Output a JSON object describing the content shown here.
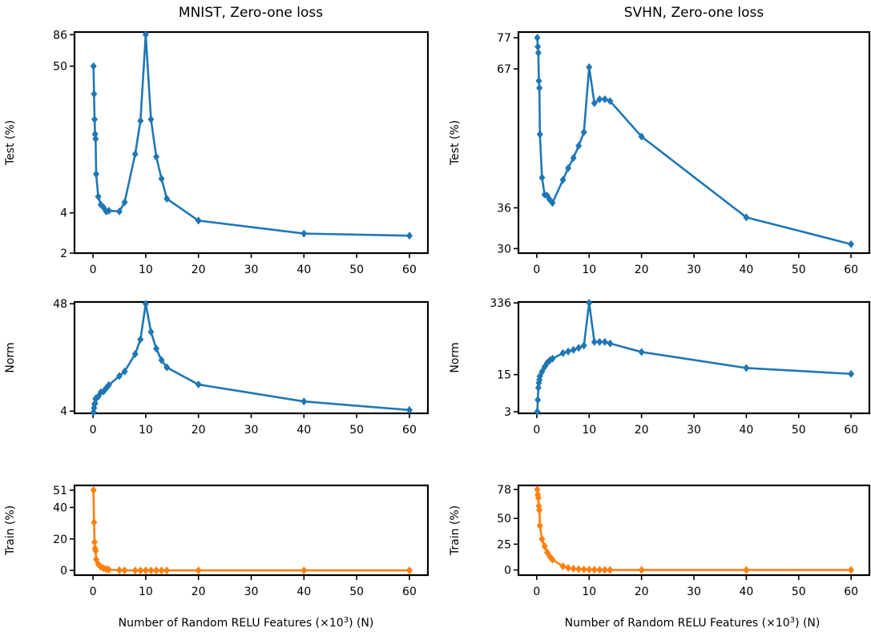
{
  "figure": {
    "xlabel": "Number of Random RELU Features (×10",
    "xlabel_sup": "3",
    "xlabel_tail": ") (N)"
  },
  "chart_data": [
    {
      "type": "line",
      "title": "MNIST, Zero-one loss",
      "ylabel": "Test (%)",
      "xlabel": "",
      "xlim": [
        -3.5,
        63.5
      ],
      "xticks": [
        0,
        10,
        20,
        30,
        40,
        50,
        60
      ],
      "yscale": "log",
      "ylim": [
        2,
        90
      ],
      "yticks": [
        2,
        4,
        50,
        86
      ],
      "color": "#1f77b4",
      "x": [
        0.1,
        0.2,
        0.3,
        0.4,
        0.5,
        0.6,
        1,
        1.5,
        2,
        2.5,
        3,
        5,
        6,
        8,
        9,
        10,
        11,
        12,
        13,
        14,
        20,
        40,
        60
      ],
      "y": [
        50,
        31,
        20,
        15.5,
        14.3,
        7.8,
        5.3,
        4.6,
        4.4,
        4.1,
        4.15,
        4.1,
        4.8,
        11,
        19.5,
        86,
        20,
        10.5,
        7.2,
        5.1,
        3.5,
        2.8,
        2.7
      ]
    },
    {
      "type": "line",
      "title": "SVHN, Zero-one loss",
      "ylabel": "Test (%)",
      "xlabel": "",
      "xlim": [
        -3.5,
        63.5
      ],
      "xticks": [
        0,
        10,
        20,
        30,
        40,
        50,
        60
      ],
      "yscale": "log",
      "ylim": [
        29.4,
        79
      ],
      "yticks": [
        30,
        36,
        67,
        77
      ],
      "color": "#1f77b4",
      "x": [
        0.1,
        0.2,
        0.3,
        0.4,
        0.5,
        0.6,
        1,
        1.5,
        2,
        2.5,
        3,
        5,
        6,
        7,
        8,
        9,
        10,
        11,
        12,
        13,
        14,
        20,
        40,
        60
      ],
      "y": [
        77,
        74,
        72,
        63.5,
        61.5,
        50,
        41.2,
        38.2,
        38,
        37.3,
        36.8,
        40.8,
        43,
        45,
        47.5,
        50.5,
        67.5,
        57.5,
        58.5,
        58.5,
        58,
        49.5,
        34.5,
        30.6
      ]
    },
    {
      "type": "line",
      "title": "",
      "ylabel": "Norm",
      "xlabel": "",
      "xlim": [
        -3.5,
        63.5
      ],
      "xticks": [
        0,
        10,
        20,
        30,
        40,
        50,
        60
      ],
      "yscale": "log",
      "ylim": [
        3.8,
        50
      ],
      "yticks": [
        4,
        48
      ],
      "color": "#1f77b4",
      "x": [
        0.1,
        0.2,
        0.3,
        0.4,
        0.5,
        0.6,
        1,
        1.5,
        2,
        2.5,
        3,
        5,
        6,
        8,
        9,
        10,
        11,
        12,
        13,
        14,
        20,
        40,
        60
      ],
      "y": [
        3.9,
        4.3,
        4.7,
        4.8,
        5.3,
        5.4,
        5.6,
        6.2,
        6.3,
        6.8,
        7.3,
        9,
        10,
        15,
        21,
        48,
        25,
        17,
        13,
        11,
        7.4,
        5,
        4.1
      ]
    },
    {
      "type": "line",
      "title": "",
      "ylabel": "Norm",
      "xlabel": "",
      "xlim": [
        -3.5,
        63.5
      ],
      "xticks": [
        0,
        10,
        20,
        30,
        40,
        50,
        60
      ],
      "yscale": "log",
      "ylim": [
        2.8,
        350
      ],
      "yticks": [
        3,
        15,
        336
      ],
      "color": "#1f77b4",
      "x": [
        0.1,
        0.2,
        0.3,
        0.4,
        0.5,
        0.6,
        1,
        1.5,
        2,
        2.5,
        3,
        5,
        6,
        7,
        8,
        9,
        10,
        11,
        12,
        13,
        14,
        20,
        40,
        60
      ],
      "y": [
        3,
        5,
        8.5,
        10.5,
        12,
        14,
        17,
        21,
        25,
        28,
        30,
        38,
        41,
        44,
        48,
        53,
        336,
        62,
        62,
        62,
        58,
        40,
        20,
        15.5
      ]
    },
    {
      "type": "line",
      "title": "",
      "ylabel": "Train (%)",
      "xlabel": "",
      "xlim": [
        -3.5,
        63.5
      ],
      "xticks": [
        0,
        10,
        20,
        30,
        40,
        50,
        60
      ],
      "ylim": [
        -3,
        54
      ],
      "yticks": [
        0,
        20,
        40,
        51
      ],
      "color": "#ff7f0e",
      "x": [
        0.1,
        0.2,
        0.3,
        0.4,
        0.5,
        0.6,
        1,
        1.5,
        2,
        2.5,
        3,
        5,
        6,
        8,
        9,
        10,
        11,
        12,
        13,
        14,
        20,
        40,
        60
      ],
      "y": [
        51,
        30.5,
        18,
        14,
        12.5,
        7,
        4,
        2.2,
        1.4,
        0.8,
        0.5,
        0.1,
        0.05,
        0,
        0,
        0,
        0,
        0,
        0,
        0,
        0,
        0,
        0
      ]
    },
    {
      "type": "line",
      "title": "",
      "ylabel": "Train (%)",
      "xlabel": "",
      "xlim": [
        -3.5,
        63.5
      ],
      "xticks": [
        0,
        10,
        20,
        30,
        40,
        50,
        60
      ],
      "ylim": [
        -5,
        82
      ],
      "yticks": [
        0,
        25,
        50,
        78
      ],
      "color": "#ff7f0e",
      "x": [
        0.1,
        0.2,
        0.3,
        0.4,
        0.5,
        0.6,
        1,
        1.5,
        2,
        2.5,
        3,
        5,
        6,
        7,
        8,
        9,
        10,
        11,
        12,
        13,
        14,
        20,
        40,
        60
      ],
      "y": [
        78,
        73,
        70,
        62,
        58,
        43,
        30,
        23,
        17,
        13,
        10,
        3.5,
        2,
        1.2,
        0.8,
        0.5,
        0.3,
        0.2,
        0.1,
        0.05,
        0.03,
        0,
        0,
        0
      ]
    }
  ]
}
